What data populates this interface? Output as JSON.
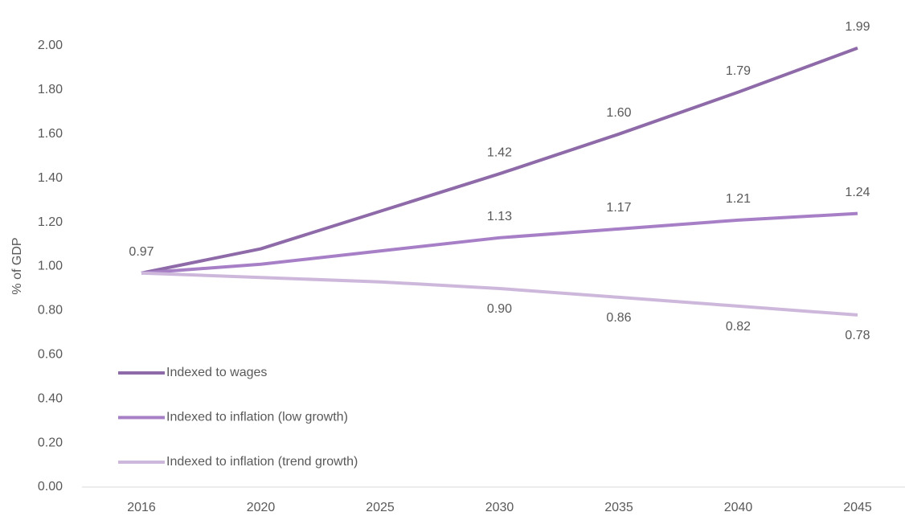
{
  "chart_data": {
    "type": "line",
    "y_label": "% of GDP",
    "categories": [
      "2016",
      "2020",
      "2025",
      "2030",
      "2035",
      "2040",
      "2045"
    ],
    "series": [
      {
        "name": "Indexed to wages",
        "color": "#8e6aa8",
        "values": [
          0.97,
          1.08,
          1.25,
          1.42,
          1.6,
          1.79,
          1.99
        ],
        "value_labels": [
          "0.97",
          null,
          null,
          "1.42",
          "1.60",
          "1.79",
          "1.99"
        ]
      },
      {
        "name": "Indexed to inflation (low growth)",
        "color": "#a77fc6",
        "values": [
          0.97,
          1.01,
          1.07,
          1.13,
          1.17,
          1.21,
          1.24
        ],
        "value_labels": [
          null,
          null,
          null,
          "1.13",
          "1.17",
          "1.21",
          "1.24"
        ]
      },
      {
        "name": "Indexed to inflation (trend growth)",
        "color": "#cdb8dc",
        "values": [
          0.97,
          0.95,
          0.93,
          0.9,
          0.86,
          0.82,
          0.78
        ],
        "value_labels": [
          null,
          null,
          null,
          "0.90",
          "0.86",
          "0.82",
          "0.78"
        ]
      }
    ],
    "ylim": [
      0,
      2
    ],
    "yticks": [
      {
        "value": 0,
        "label": "0.00"
      },
      {
        "value": 0.2,
        "label": "0.20"
      },
      {
        "value": 0.4,
        "label": "0.40"
      },
      {
        "value": 0.6,
        "label": "0.60"
      },
      {
        "value": 0.8,
        "label": "0.80"
      },
      {
        "value": 1,
        "label": "1.00"
      },
      {
        "value": 1.2,
        "label": "1.20"
      },
      {
        "value": 1.4,
        "label": "1.40"
      },
      {
        "value": 1.6,
        "label": "1.60"
      },
      {
        "value": 1.8,
        "label": "1.80"
      },
      {
        "value": 2,
        "label": "2.00"
      }
    ],
    "grid": false,
    "legend": "bottom-left"
  }
}
